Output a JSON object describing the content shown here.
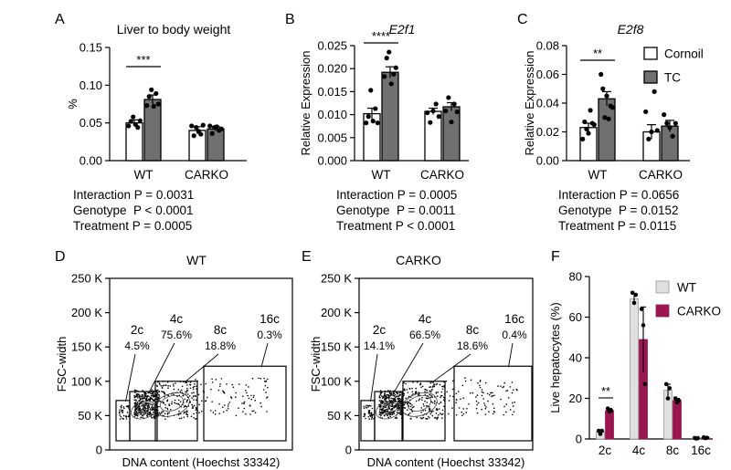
{
  "colors": {
    "black": "#000000",
    "white": "#ffffff",
    "gray": "#707070",
    "light_gray": "#e0e0e0",
    "crimson": "#9a1750"
  },
  "panel_letters": [
    "A",
    "B",
    "C",
    "D",
    "E",
    "F"
  ],
  "group_labels": [
    "WT",
    "CARKO"
  ],
  "legend_top": [
    "Cornoil",
    "TC"
  ],
  "chart_data": [
    {
      "id": "A",
      "type": "bar",
      "title": "Liver to body weight",
      "title_italic": false,
      "ylabel": "%",
      "ylim": [
        0,
        0.15
      ],
      "yticks": [
        "0.00",
        "0.05",
        "0.10",
        "0.15"
      ],
      "categories": [
        "WT",
        "CARKO"
      ],
      "series": [
        {
          "name": "Cornoil",
          "values": [
            0.05,
            0.04
          ],
          "errors": [
            0.004,
            0.005
          ],
          "points": [
            [
              0.046,
              0.052,
              0.058,
              0.048,
              0.044,
              0.053
            ],
            [
              0.046,
              0.033,
              0.044,
              0.039,
              0.035,
              0.047
            ]
          ]
        },
        {
          "name": "TC",
          "values": [
            0.081,
            0.042
          ],
          "errors": [
            0.006,
            0.003
          ],
          "points": [
            [
              0.073,
              0.085,
              0.094,
              0.072,
              0.089,
              0.075
            ],
            [
              0.046,
              0.036,
              0.044,
              0.045,
              0.04,
              0.042
            ]
          ]
        }
      ],
      "significance": "***",
      "stats": [
        "Interaction P = 0.0031",
        "Genotype  P < 0.0001",
        "Treatment P = 0.0005"
      ]
    },
    {
      "id": "B",
      "type": "bar",
      "title": "E2f1",
      "title_italic": true,
      "ylabel": "Relative Expression",
      "ylim": [
        0,
        0.025
      ],
      "yticks": [
        "0.000",
        "0.005",
        "0.010",
        "0.015",
        "0.020",
        "0.025"
      ],
      "categories": [
        "WT",
        "CARKO"
      ],
      "series": [
        {
          "name": "Cornoil",
          "values": [
            0.0102,
            0.0107
          ],
          "errors": [
            0.0012,
            0.0007
          ],
          "points": [
            [
              0.0082,
              0.0096,
              0.0153,
              0.0086,
              0.0113,
              0.0082
            ],
            [
              0.0104,
              0.0083,
              0.0108,
              0.0123,
              0.0096
            ]
          ]
        },
        {
          "name": "TC",
          "values": [
            0.0192,
            0.0117
          ],
          "errors": [
            0.0012,
            0.0009
          ],
          "points": [
            [
              0.0183,
              0.0223,
              0.0236,
              0.0167,
              0.0188,
              0.0202
            ],
            [
              0.0108,
              0.0137,
              0.0084,
              0.0123,
              0.0106
            ]
          ]
        }
      ],
      "significance": "****",
      "stats": [
        "Interaction P = 0.0005",
        "Genotype  P = 0.0011",
        "Treatment P < 0.0001"
      ]
    },
    {
      "id": "C",
      "type": "bar",
      "title": "E2f8",
      "title_italic": true,
      "ylabel": "Relative Expression",
      "ylim": [
        0,
        0.08
      ],
      "yticks": [
        "0.00",
        "0.02",
        "0.04",
        "0.06",
        "0.08"
      ],
      "categories": [
        "WT",
        "CARKO"
      ],
      "series": [
        {
          "name": "Cornoil",
          "values": [
            0.023,
            0.02
          ],
          "errors": [
            0.003,
            0.005
          ],
          "points": [
            [
              0.015,
              0.027,
              0.022,
              0.019,
              0.035,
              0.026,
              0.025
            ],
            [
              0.034,
              0.015,
              0.02,
              0.048,
              0.021
            ]
          ]
        },
        {
          "name": "TC",
          "values": [
            0.043,
            0.024
          ],
          "errors": [
            0.005,
            0.004
          ],
          "points": [
            [
              0.06,
              0.05,
              0.03,
              0.045,
              0.029,
              0.038,
              0.037
            ],
            [
              0.032,
              0.026,
              0.023,
              0.017,
              0.026
            ]
          ]
        }
      ],
      "significance": "**",
      "stats": [
        "Interaction P = 0.0656",
        "Genotype  P = 0.0152",
        "Treatment P = 0.0115"
      ]
    },
    {
      "id": "D",
      "type": "scatter",
      "title": "WT",
      "xlabel": "DNA content (Hoechst 33342)",
      "ylabel": "FSC-width",
      "yticks": [
        "0",
        "50 K",
        "100 K",
        "150 K",
        "200 K",
        "250 K"
      ],
      "ylim": [
        0,
        250000
      ],
      "gates": [
        {
          "name": "2c",
          "percent": "4.5%"
        },
        {
          "name": "4c",
          "percent": "75.6%"
        },
        {
          "name": "8c",
          "percent": "18.8%"
        },
        {
          "name": "16c",
          "percent": "0.3%"
        }
      ]
    },
    {
      "id": "E",
      "type": "scatter",
      "title": "CARKO",
      "xlabel": "DNA content (Hoechst 33342)",
      "ylabel": "FSC-width",
      "yticks": [
        "0",
        "50 K",
        "100 K",
        "150 K",
        "200 K",
        "250 K"
      ],
      "ylim": [
        0,
        250000
      ],
      "gates": [
        {
          "name": "2c",
          "percent": "14.1%"
        },
        {
          "name": "4c",
          "percent": "66.5%"
        },
        {
          "name": "8c",
          "percent": "18.6%"
        },
        {
          "name": "16c",
          "percent": "0.4%"
        }
      ]
    },
    {
      "id": "F",
      "type": "bar",
      "title": "",
      "ylabel": "Live hepatocytes (%)",
      "ylim": [
        0,
        80
      ],
      "yticks": [
        "0",
        "20",
        "40",
        "60",
        "80"
      ],
      "categories": [
        "2c",
        "4c",
        "8c",
        "16c"
      ],
      "series": [
        {
          "name": "WT",
          "values": [
            3.5,
            69,
            24,
            0.4
          ],
          "errors": [
            1,
            2.5,
            3,
            0.3
          ],
          "points": [
            [
              4,
              2.5,
              4
            ],
            [
              72,
              67,
              71
            ],
            [
              27,
              20,
              25
            ],
            [
              0.5,
              0.2,
              0.4
            ]
          ]
        },
        {
          "name": "CARKO",
          "values": [
            14,
            49,
            19,
            0.6
          ],
          "errors": [
            1,
            16,
            1,
            0.3
          ],
          "points": [
            [
              15,
              13.5,
              14
            ],
            [
              64,
              56,
              27
            ],
            [
              20,
              18,
              19
            ],
            [
              0.8,
              0.4,
              0.6
            ]
          ]
        }
      ],
      "significance": "**"
    }
  ]
}
